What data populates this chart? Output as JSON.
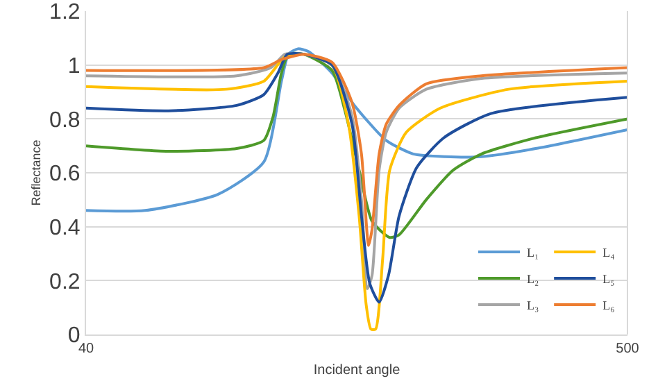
{
  "chart_data": {
    "type": "line",
    "xlabel": "Incident angle",
    "ylabel": "Reflectance",
    "xlim": [
      40,
      500
    ],
    "xticks": [
      40,
      500
    ],
    "ylim": [
      0,
      1.2
    ],
    "yticks": [
      0,
      0.2,
      0.4,
      0.6,
      0.8,
      1,
      1.2
    ],
    "grid": "y",
    "legend": "bottom right",
    "marker": "none",
    "line_style": "solid",
    "series": [
      {
        "name": "L₁",
        "color": "#5b9bd5",
        "x": [
          40,
          90,
          152,
          191,
          206,
          212,
          220,
          229,
          249,
          268,
          295,
          318,
          345,
          376,
          422,
          500
        ],
        "values": [
          0.46,
          0.46,
          0.52,
          0.64,
          0.94,
          1.04,
          1.06,
          1.05,
          0.97,
          0.85,
          0.72,
          0.67,
          0.66,
          0.66,
          0.69,
          0.76
        ]
      },
      {
        "name": "L₂",
        "color": "#4e9a2a",
        "x": [
          40,
          110,
          168,
          191,
          199,
          206,
          212,
          225,
          249,
          260,
          272,
          283,
          298,
          306,
          329,
          352,
          376,
          422,
          500
        ],
        "values": [
          0.7,
          0.68,
          0.69,
          0.72,
          0.81,
          0.97,
          1.04,
          1.04,
          0.98,
          0.83,
          0.61,
          0.42,
          0.36,
          0.37,
          0.5,
          0.61,
          0.67,
          0.73,
          0.8
        ]
      },
      {
        "name": "L₃",
        "color": "#a5a5a5",
        "x": [
          40,
          168,
          197,
          209,
          225,
          249,
          266,
          274,
          279,
          283,
          289,
          295,
          306,
          329,
          376,
          500
        ],
        "values": [
          0.96,
          0.96,
          0.99,
          1.04,
          1.04,
          1.0,
          0.81,
          0.5,
          0.17,
          0.22,
          0.61,
          0.75,
          0.84,
          0.91,
          0.95,
          0.97
        ]
      },
      {
        "name": "L₄",
        "color": "#ffc000",
        "x": [
          40,
          159,
          191,
          209,
          225,
          249,
          263,
          272,
          278,
          282,
          286,
          292,
          298,
          312,
          341,
          399,
          500
        ],
        "values": [
          0.92,
          0.91,
          0.94,
          1.03,
          1.04,
          1.0,
          0.78,
          0.44,
          0.11,
          0.02,
          0.02,
          0.28,
          0.61,
          0.75,
          0.84,
          0.91,
          0.94
        ]
      },
      {
        "name": "L₅",
        "color": "#1f4e9c",
        "x": [
          40,
          110,
          168,
          191,
          203,
          211,
          225,
          249,
          266,
          274,
          281,
          289,
          297,
          306,
          321,
          344,
          384,
          500
        ],
        "values": [
          0.84,
          0.83,
          0.85,
          0.89,
          0.97,
          1.04,
          1.04,
          1.0,
          0.78,
          0.44,
          0.19,
          0.12,
          0.22,
          0.44,
          0.62,
          0.73,
          0.82,
          0.88
        ]
      },
      {
        "name": "L₆",
        "color": "#ed7d31",
        "x": [
          40,
          191,
          206,
          225,
          249,
          266,
          274,
          280,
          283,
          289,
          295,
          306,
          329,
          376,
          500
        ],
        "values": [
          0.98,
          0.99,
          1.02,
          1.04,
          1.01,
          0.86,
          0.67,
          0.33,
          0.39,
          0.67,
          0.78,
          0.85,
          0.93,
          0.96,
          0.99
        ]
      }
    ]
  }
}
